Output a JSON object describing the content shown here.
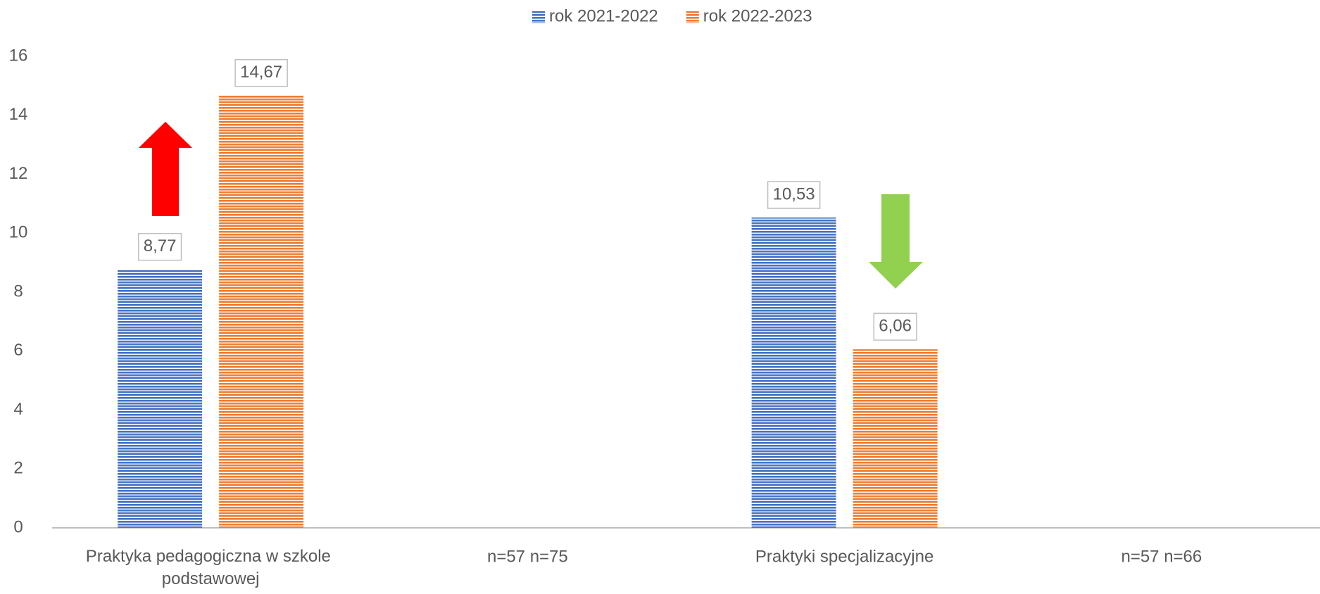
{
  "chart_data": {
    "type": "bar",
    "categories": [
      "Praktyka pedagogiczna w szkole podstawowej",
      "n=57 n=75",
      "Praktyki specjalizacyjne",
      "n=57 n=66"
    ],
    "series": [
      {
        "name": "rok 2021-2022",
        "color": "#4472c4",
        "values": [
          8.77,
          null,
          10.53,
          null
        ],
        "value_labels": [
          "8,77",
          null,
          "10,53",
          null
        ]
      },
      {
        "name": "rok 2022-2023",
        "color": "#ed7d31",
        "values": [
          14.67,
          null,
          6.06,
          null
        ],
        "value_labels": [
          "14,67",
          null,
          "6,06",
          null
        ]
      }
    ],
    "ylim": [
      0,
      16
    ],
    "yticks": [
      0,
      2,
      4,
      6,
      8,
      10,
      12,
      14,
      16
    ],
    "grid": false,
    "legend": "top"
  }
}
